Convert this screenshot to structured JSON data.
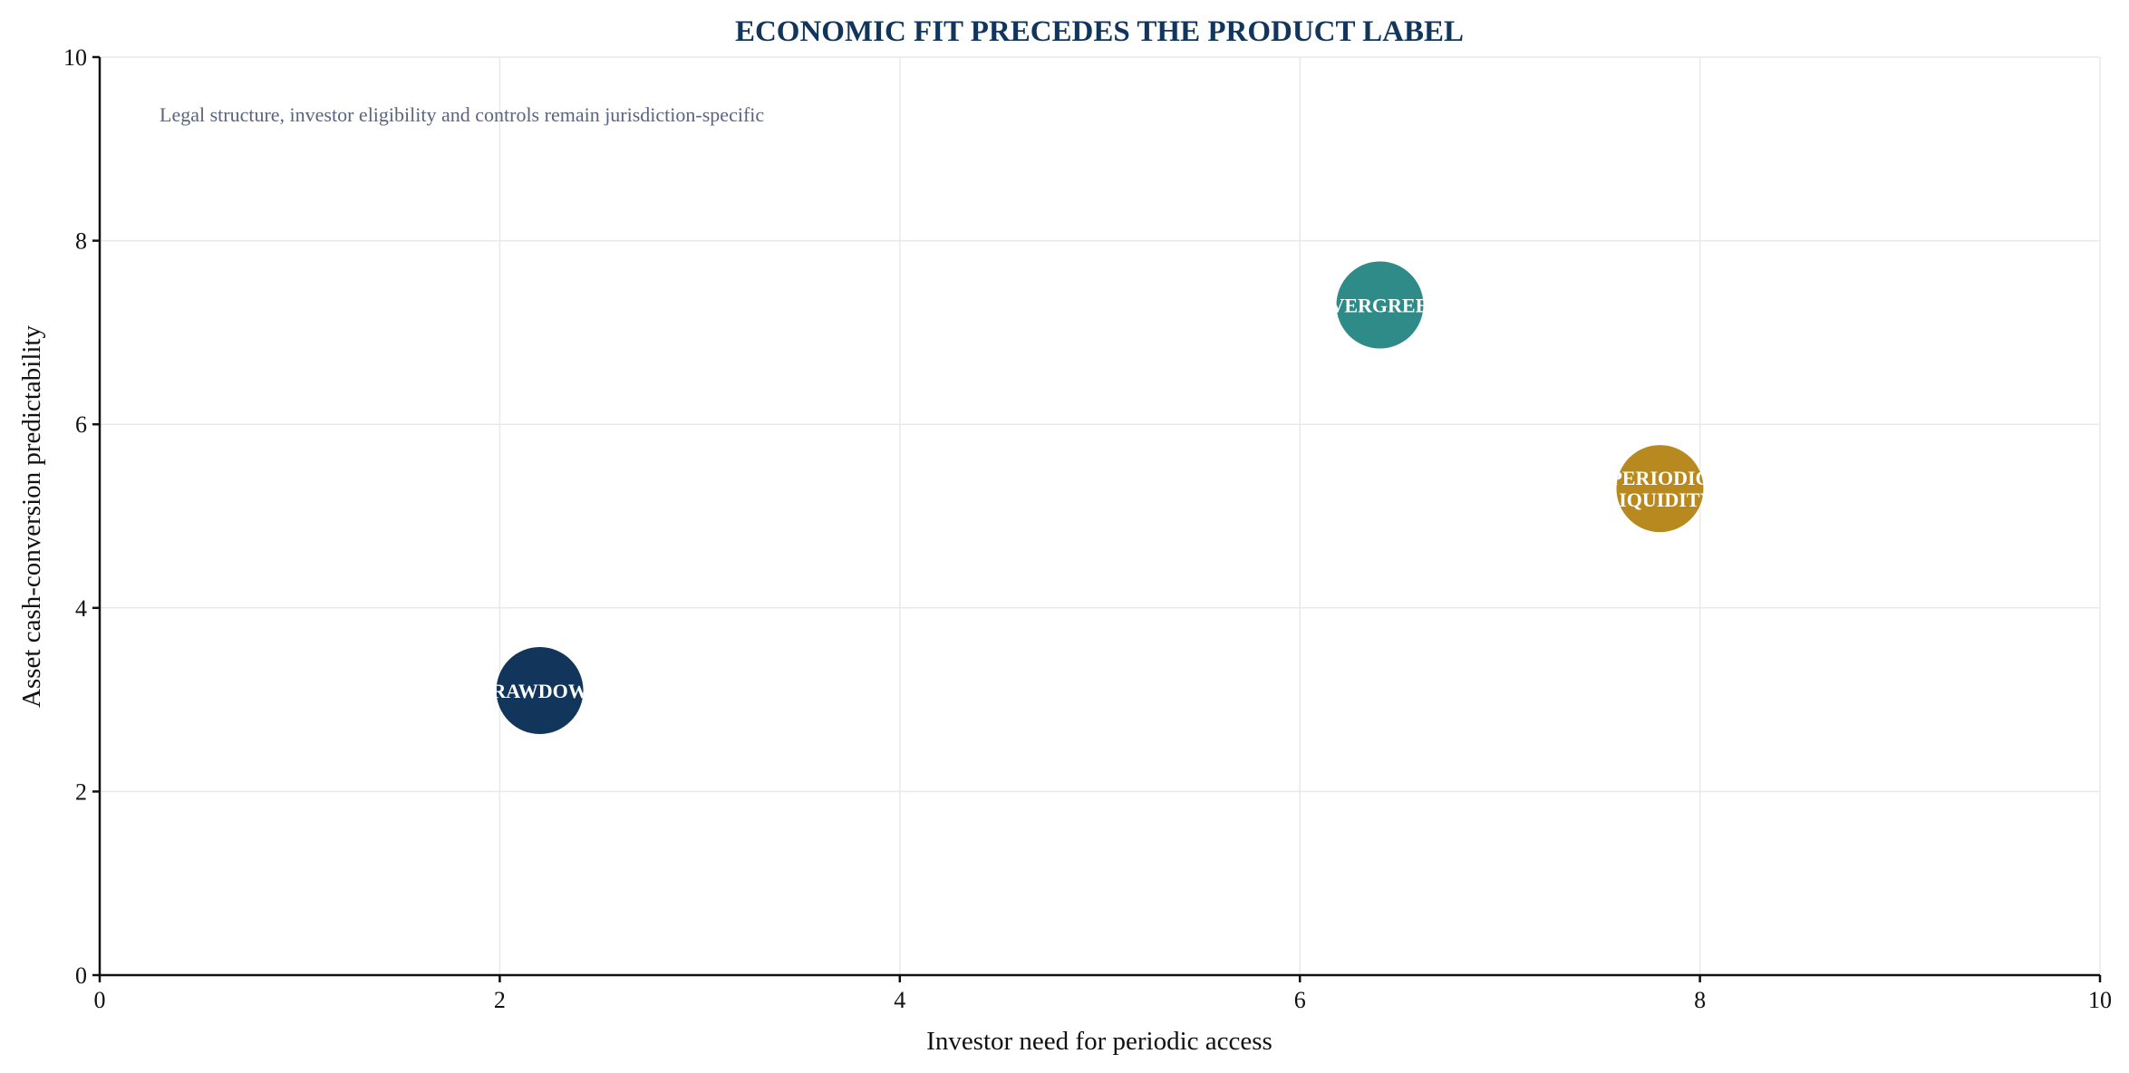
{
  "chart_data": {
    "type": "scatter",
    "title": "ECONOMIC FIT PRECEDES THE PRODUCT LABEL",
    "xlabel": "Investor need for periodic access",
    "ylabel": "Asset cash-conversion predictability",
    "xlim": [
      0,
      10
    ],
    "ylim": [
      0,
      10
    ],
    "xticks": [
      "0",
      "2",
      "4",
      "6",
      "8",
      "10"
    ],
    "yticks": [
      "0",
      "2",
      "4",
      "6",
      "8",
      "10"
    ],
    "grid": true,
    "annotation": "Legal structure, investor eligibility and controls remain jurisdiction-specific",
    "points": [
      {
        "label": "DRAWDOWN",
        "x": 2.2,
        "y": 3.1,
        "color": "#12355b"
      },
      {
        "label": "EVERGREEN",
        "x": 6.4,
        "y": 7.3,
        "color": "#2e8b87"
      },
      {
        "label": "PERIODIC LIQUIDITY",
        "x": 7.8,
        "y": 5.3,
        "color": "#b8891f"
      }
    ],
    "colors": {
      "title": "#12355b",
      "annotation": "#5a6480"
    }
  }
}
